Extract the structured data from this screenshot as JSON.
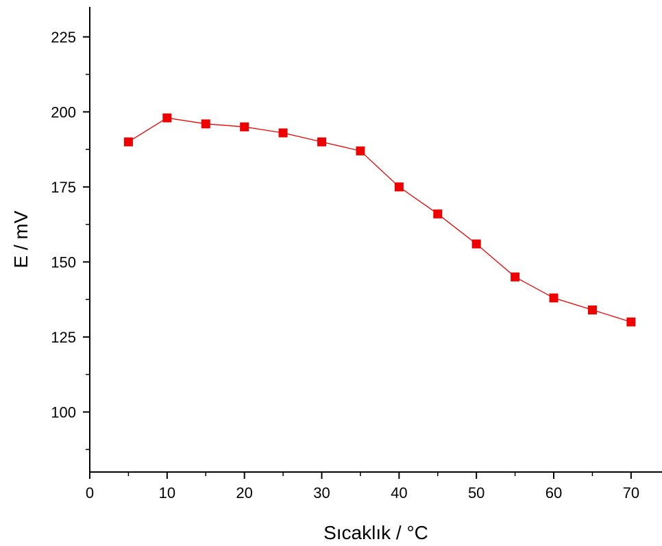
{
  "chart_data": {
    "type": "line",
    "title": "",
    "xlabel": "Sıcaklık / °C",
    "ylabel": "E / mV",
    "xlim": [
      0,
      74
    ],
    "ylim": [
      80,
      235
    ],
    "x_ticks": [
      0,
      10,
      20,
      30,
      40,
      50,
      60,
      70
    ],
    "y_ticks": [
      100,
      125,
      150,
      175,
      200,
      225
    ],
    "x_minor_step": 5,
    "y_minor_step": 12.5,
    "grid": false,
    "legend": "none",
    "marker": "square",
    "series": [
      {
        "color": "#ee0000",
        "x": [
          5,
          10,
          15,
          20,
          25,
          30,
          35,
          40,
          45,
          50,
          55,
          60,
          65,
          70
        ],
        "y": [
          190,
          198,
          196,
          195,
          193,
          190,
          187,
          175,
          166,
          156,
          145,
          138,
          134,
          130
        ]
      }
    ]
  }
}
